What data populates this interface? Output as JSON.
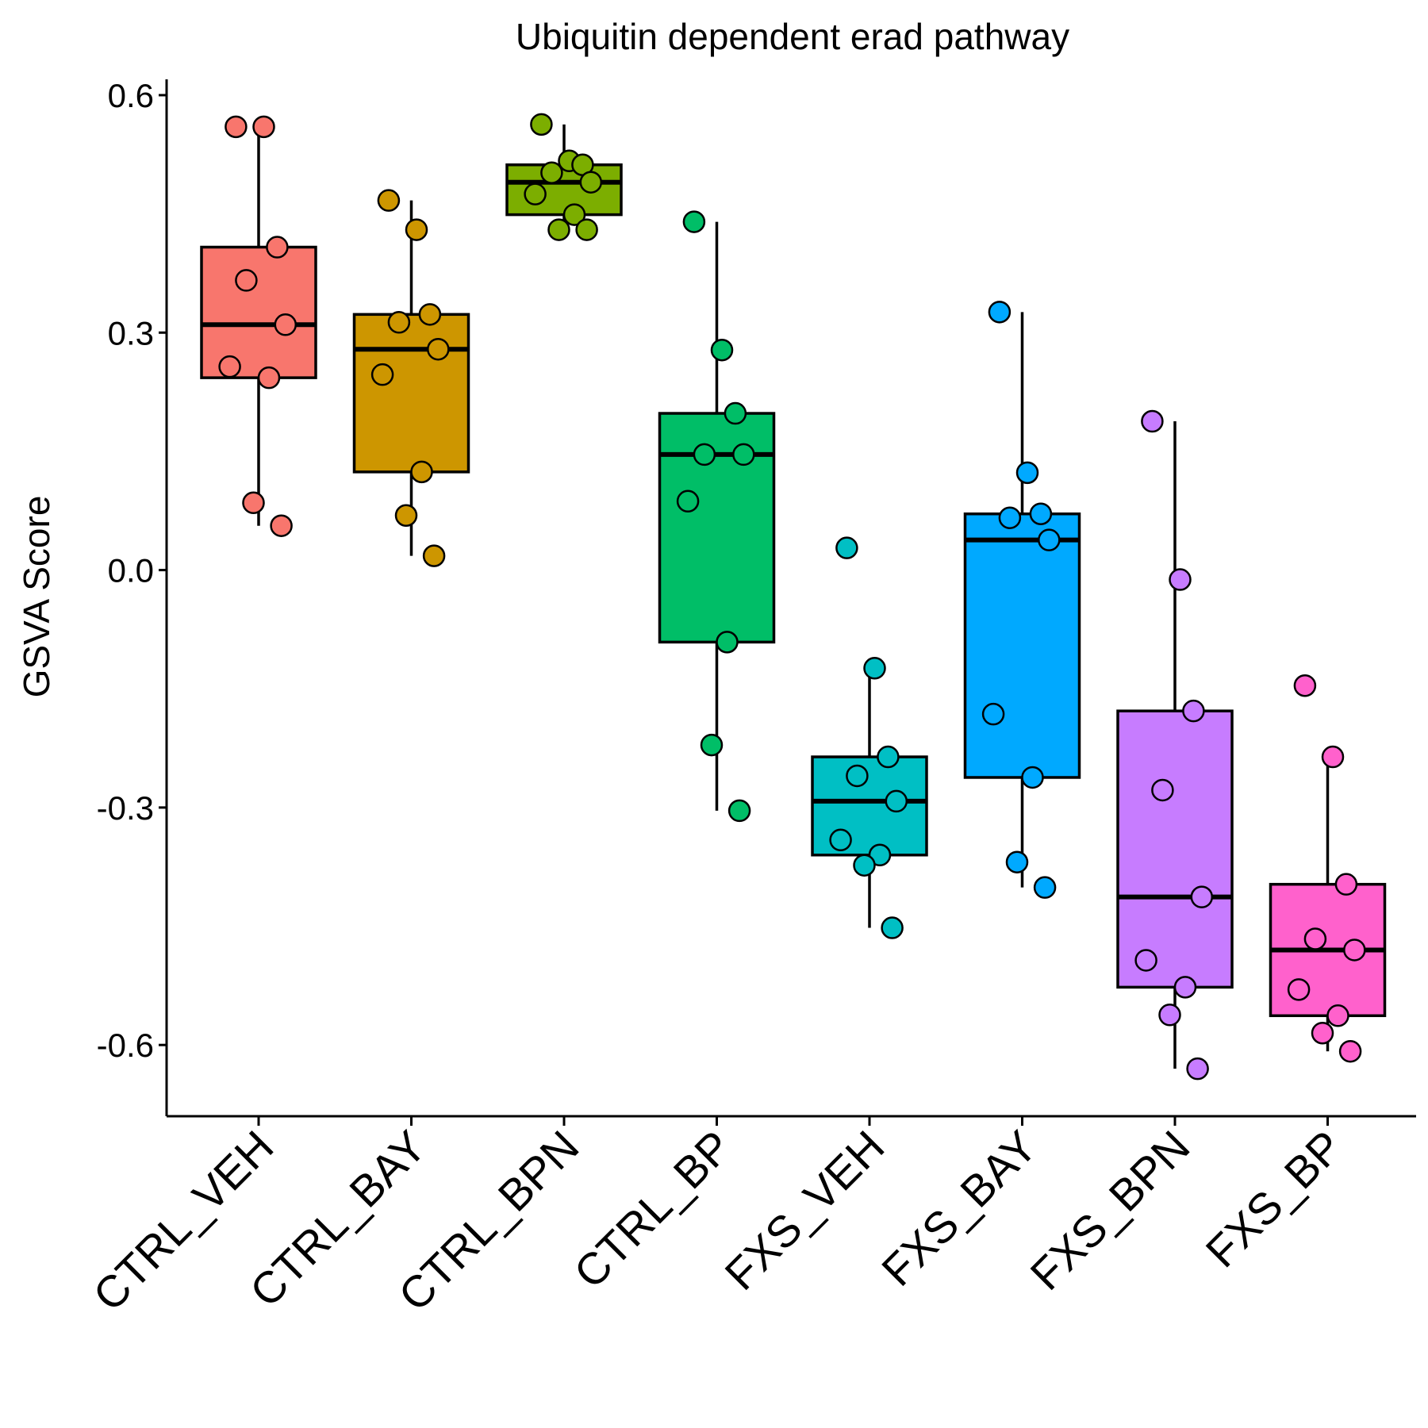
{
  "chart_data": {
    "type": "box",
    "title": "Ubiquitin dependent erad pathway",
    "xlabel": "",
    "ylabel": "GSVA Score",
    "ylim": [
      -0.69,
      0.62
    ],
    "yticks": [
      0.6,
      0.3,
      0.0,
      -0.3,
      -0.6
    ],
    "ytick_labels": [
      "0.6",
      "0.3",
      "0.0",
      "-0.3",
      "-0.6"
    ],
    "grid": false,
    "legend": "none",
    "groups": [
      {
        "name": "CTRL_VEH",
        "color": "#F8766D",
        "box": {
          "q1": 0.243,
          "median": 0.31,
          "q3": 0.408,
          "whisker_low": 0.056,
          "whisker_high": 0.56
        },
        "points": [
          0.56,
          0.56,
          0.408,
          0.366,
          0.31,
          0.257,
          0.243,
          0.085,
          0.056
        ]
      },
      {
        "name": "CTRL_BAY",
        "color": "#CD9600",
        "box": {
          "q1": 0.124,
          "median": 0.279,
          "q3": 0.323,
          "whisker_low": 0.018,
          "whisker_high": 0.467
        },
        "points": [
          0.467,
          0.43,
          0.323,
          0.313,
          0.279,
          0.247,
          0.124,
          0.069,
          0.018
        ]
      },
      {
        "name": "CTRL_BPN",
        "color": "#7CAE00",
        "box": {
          "q1": 0.449,
          "median": 0.49,
          "q3": 0.512,
          "whisker_low": 0.43,
          "whisker_high": 0.563
        },
        "points": [
          0.563,
          0.517,
          0.512,
          0.502,
          0.49,
          0.475,
          0.449,
          0.43,
          0.43
        ]
      },
      {
        "name": "CTRL_BP",
        "color": "#00BE67",
        "box": {
          "q1": -0.091,
          "median": 0.146,
          "q3": 0.198,
          "whisker_low": -0.304,
          "whisker_high": 0.44
        },
        "points": [
          0.44,
          0.278,
          0.198,
          0.146,
          0.146,
          0.087,
          -0.091,
          -0.221,
          -0.304
        ]
      },
      {
        "name": "FXS_VEH",
        "color": "#00BFC4",
        "box": {
          "q1": -0.36,
          "median": -0.292,
          "q3": -0.236,
          "whisker_low": -0.452,
          "whisker_high": -0.124
        },
        "points": [
          0.028,
          -0.124,
          -0.236,
          -0.26,
          -0.292,
          -0.341,
          -0.36,
          -0.373,
          -0.452
        ]
      },
      {
        "name": "FXS_BAY",
        "color": "#00A9FF",
        "box": {
          "q1": -0.262,
          "median": 0.038,
          "q3": 0.071,
          "whisker_low": -0.401,
          "whisker_high": 0.326
        },
        "points": [
          0.326,
          0.123,
          0.071,
          0.066,
          0.038,
          -0.182,
          -0.262,
          -0.369,
          -0.401
        ]
      },
      {
        "name": "FXS_BPN",
        "color": "#C77CFF",
        "box": {
          "q1": -0.527,
          "median": -0.413,
          "q3": -0.178,
          "whisker_low": -0.63,
          "whisker_high": 0.188
        },
        "points": [
          0.188,
          -0.012,
          -0.178,
          -0.278,
          -0.413,
          -0.493,
          -0.527,
          -0.562,
          -0.63
        ]
      },
      {
        "name": "FXS_BP",
        "color": "#FF61CC",
        "box": {
          "q1": -0.563,
          "median": -0.48,
          "q3": -0.397,
          "whisker_low": -0.608,
          "whisker_high": -0.236
        },
        "points": [
          -0.146,
          -0.236,
          -0.397,
          -0.466,
          -0.48,
          -0.53,
          -0.563,
          -0.585,
          -0.608
        ]
      }
    ]
  }
}
